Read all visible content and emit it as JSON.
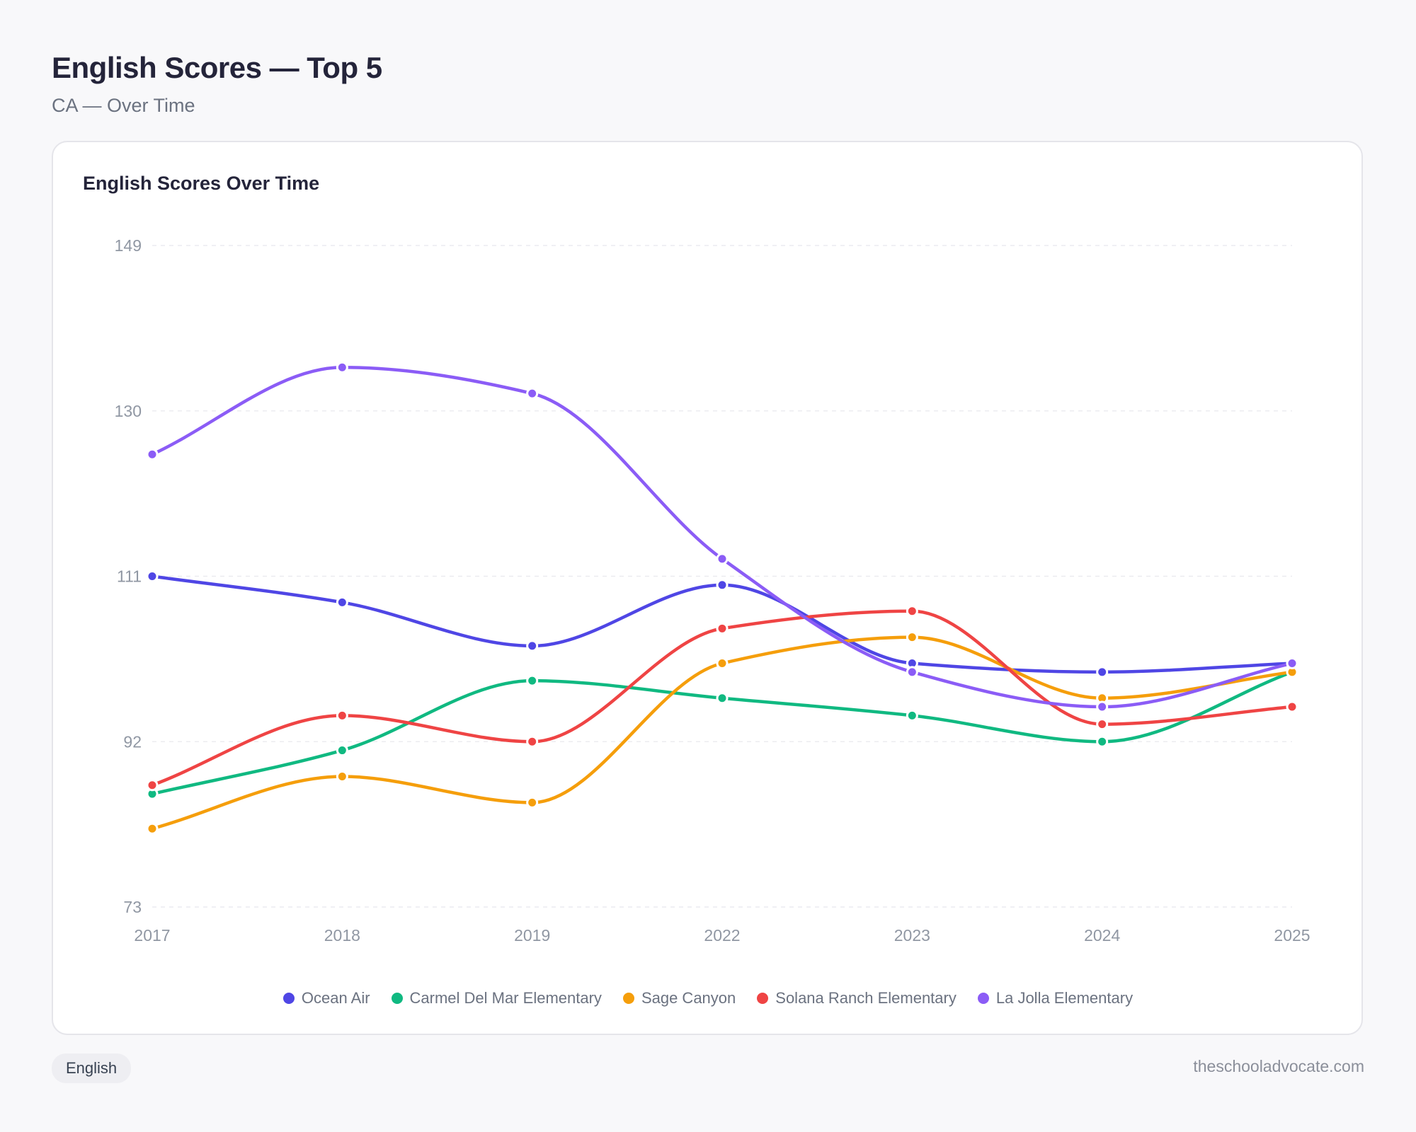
{
  "header": {
    "title": "English Scores — Top 5",
    "subtitle": "CA — Over Time"
  },
  "card": {
    "title": "English Scores Over Time"
  },
  "footer": {
    "badge": "English",
    "site": "theschooladvocate.com"
  },
  "chart_data": {
    "type": "line",
    "title": "English Scores Over Time",
    "categories": [
      "2017",
      "2018",
      "2019",
      "2022",
      "2023",
      "2024",
      "2025"
    ],
    "y_ticks": [
      149,
      130,
      111,
      92,
      73
    ],
    "ylim": [
      73,
      149
    ],
    "grid": true,
    "legend": "bottom",
    "series": [
      {
        "name": "Ocean Air",
        "color": "#4f46e5",
        "values": [
          111,
          108,
          103,
          110,
          101,
          100,
          101
        ]
      },
      {
        "name": "Carmel Del Mar Elementary",
        "color": "#10b981",
        "values": [
          86,
          91,
          99,
          97,
          95,
          92,
          100
        ]
      },
      {
        "name": "Sage Canyon",
        "color": "#f59e0b",
        "values": [
          82,
          88,
          85,
          101,
          104,
          97,
          100
        ]
      },
      {
        "name": "Solana Ranch Elementary",
        "color": "#ef4444",
        "values": [
          87,
          95,
          92,
          105,
          107,
          94,
          96
        ]
      },
      {
        "name": "La Jolla Elementary",
        "color": "#8b5cf6",
        "values": [
          125,
          135,
          132,
          113,
          100,
          96,
          101
        ]
      }
    ]
  }
}
